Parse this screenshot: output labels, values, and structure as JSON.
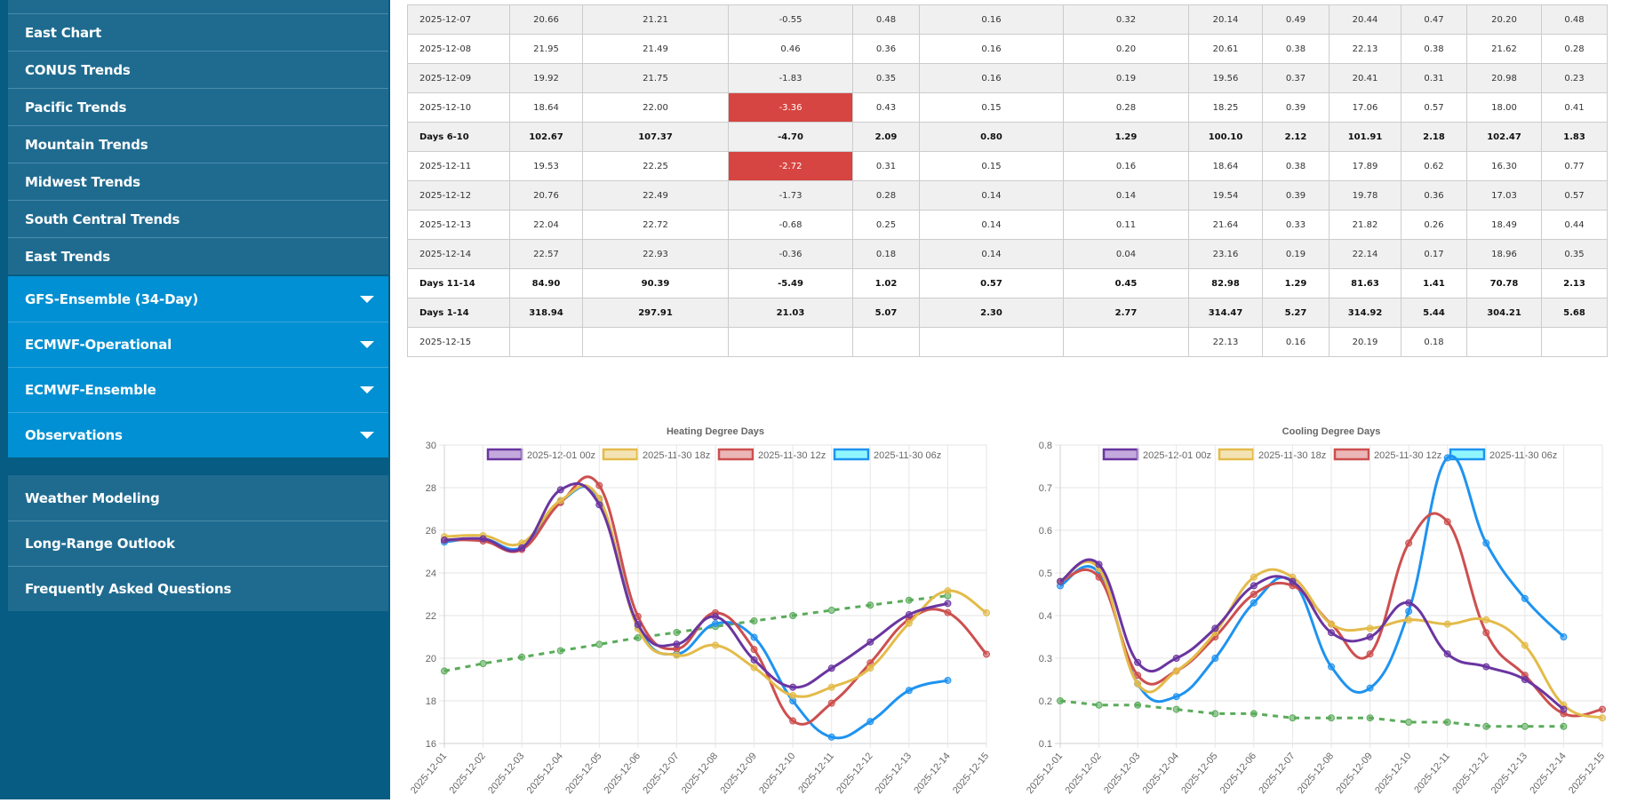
{
  "sidebar": {
    "nav_items": [
      {
        "label": "East Chart"
      },
      {
        "label": "CONUS Trends"
      },
      {
        "label": "Pacific Trends"
      },
      {
        "label": "Mountain Trends"
      },
      {
        "label": "Midwest Trends"
      },
      {
        "label": "South Central Trends"
      },
      {
        "label": "East Trends"
      }
    ],
    "dropdowns": [
      {
        "label": "GFS-Ensemble (34-Day)"
      },
      {
        "label": "ECMWF-Operational"
      },
      {
        "label": "ECMWF-Ensemble"
      },
      {
        "label": "Observations"
      }
    ],
    "bottom_items": [
      {
        "label": "Weather Modeling"
      },
      {
        "label": "Long-Range Outlook"
      },
      {
        "label": "Frequently Asked Questions"
      }
    ]
  },
  "table": {
    "rows": [
      {
        "type": "day",
        "cells": [
          "2025-12-07",
          "20.66",
          "21.21",
          "-0.55",
          "0.48",
          "0.16",
          "0.32",
          "20.14",
          "0.49",
          "20.44",
          "0.47",
          "20.20",
          "0.48"
        ],
        "highlight": ""
      },
      {
        "type": "day",
        "cells": [
          "2025-12-08",
          "21.95",
          "21.49",
          "0.46",
          "0.36",
          "0.16",
          "0.20",
          "20.61",
          "0.38",
          "22.13",
          "0.38",
          "21.62",
          "0.28"
        ],
        "highlight": ""
      },
      {
        "type": "day",
        "cells": [
          "2025-12-09",
          "19.92",
          "21.75",
          "-1.83",
          "0.35",
          "0.16",
          "0.19",
          "19.56",
          "0.37",
          "20.41",
          "0.31",
          "20.98",
          "0.23"
        ],
        "highlight": ""
      },
      {
        "type": "day",
        "cells": [
          "2025-12-10",
          "18.64",
          "22.00",
          "-3.36",
          "0.43",
          "0.15",
          "0.28",
          "18.25",
          "0.39",
          "17.06",
          "0.57",
          "18.00",
          "0.41"
        ],
        "highlight": "neg"
      },
      {
        "type": "sum",
        "cells": [
          "Days 6-10",
          "102.67",
          "107.37",
          "-4.70",
          "2.09",
          "0.80",
          "1.29",
          "100.10",
          "2.12",
          "101.91",
          "2.18",
          "102.47",
          "1.83"
        ],
        "highlight": ""
      },
      {
        "type": "day",
        "cells": [
          "2025-12-11",
          "19.53",
          "22.25",
          "-2.72",
          "0.31",
          "0.15",
          "0.16",
          "18.64",
          "0.38",
          "17.89",
          "0.62",
          "16.30",
          "0.77"
        ],
        "highlight": "neg"
      },
      {
        "type": "day",
        "cells": [
          "2025-12-12",
          "20.76",
          "22.49",
          "-1.73",
          "0.28",
          "0.14",
          "0.14",
          "19.54",
          "0.39",
          "19.78",
          "0.36",
          "17.03",
          "0.57"
        ],
        "highlight": ""
      },
      {
        "type": "day",
        "cells": [
          "2025-12-13",
          "22.04",
          "22.72",
          "-0.68",
          "0.25",
          "0.14",
          "0.11",
          "21.64",
          "0.33",
          "21.82",
          "0.26",
          "18.49",
          "0.44"
        ],
        "highlight": ""
      },
      {
        "type": "day",
        "cells": [
          "2025-12-14",
          "22.57",
          "22.93",
          "-0.36",
          "0.18",
          "0.14",
          "0.04",
          "23.16",
          "0.19",
          "22.14",
          "0.17",
          "18.96",
          "0.35"
        ],
        "highlight": ""
      },
      {
        "type": "sum",
        "cells": [
          "Days 11-14",
          "84.90",
          "90.39",
          "-5.49",
          "1.02",
          "0.57",
          "0.45",
          "82.98",
          "1.29",
          "81.63",
          "1.41",
          "70.78",
          "2.13"
        ],
        "highlight": ""
      },
      {
        "type": "sum",
        "cells": [
          "Days 1-14",
          "318.94",
          "297.91",
          "21.03",
          "5.07",
          "2.30",
          "2.77",
          "314.47",
          "5.27",
          "314.92",
          "5.44",
          "304.21",
          "5.68"
        ],
        "highlight": "pos"
      },
      {
        "type": "day",
        "cells": [
          "2025-12-15",
          "",
          "",
          "",
          "",
          "",
          "",
          "22.13",
          "0.16",
          "20.19",
          "0.18",
          "",
          ""
        ],
        "highlight": ""
      }
    ]
  },
  "colors": {
    "purple": "#6a35a0",
    "yellow": "#e3bb4a",
    "red": "#cd4f4f",
    "blue": "#1e93f0",
    "green": "#5aab5a",
    "neg_cell": "#d64541",
    "pos_cell": "#4169b0"
  },
  "chart_data": [
    {
      "type": "line",
      "title": "Heating Degree Days",
      "xlabel": "",
      "ylabel": "",
      "ylim": [
        16,
        30
      ],
      "yticks": [
        "30",
        "28",
        "26",
        "24",
        "22",
        "20",
        "18",
        "16"
      ],
      "grid": true,
      "legend_position": "top",
      "categories": [
        "2025-12-01",
        "2025-12-02",
        "2025-12-03",
        "2025-12-04",
        "2025-12-05",
        "2025-12-06",
        "2025-12-07",
        "2025-12-08",
        "2025-12-09",
        "2025-12-10",
        "2025-12-11",
        "2025-12-12",
        "2025-12-13",
        "2025-12-14",
        "2025-12-15"
      ],
      "series": [
        {
          "name": "2025-12-01 00z",
          "color": "#6a35a0",
          "fill": "#c3a9dc",
          "values": [
            25.54,
            25.6,
            25.17,
            27.9,
            27.2,
            21.58,
            20.66,
            21.95,
            19.92,
            18.64,
            19.53,
            20.76,
            22.04,
            22.57,
            null
          ]
        },
        {
          "name": "2025-11-30 18z",
          "color": "#e3bb4a",
          "fill": "#f3e3b4",
          "values": [
            25.7,
            25.75,
            25.4,
            27.4,
            27.5,
            21.4,
            20.14,
            20.61,
            19.56,
            18.25,
            18.64,
            19.54,
            21.64,
            23.16,
            22.13
          ]
        },
        {
          "name": "2025-11-30 12z",
          "color": "#cd4f4f",
          "fill": "#ebb6b6",
          "values": [
            25.55,
            25.5,
            25.1,
            27.3,
            28.1,
            21.96,
            20.44,
            22.13,
            20.41,
            17.06,
            17.89,
            19.78,
            21.82,
            22.14,
            20.19
          ]
        },
        {
          "name": "2025-11-30 06z",
          "color": "#1e93f0",
          "fill": "#8ff6ff",
          "values": [
            25.45,
            25.6,
            25.2,
            27.35,
            27.45,
            21.5,
            20.2,
            21.62,
            20.98,
            18.0,
            16.3,
            17.03,
            18.49,
            18.96,
            null
          ]
        },
        {
          "name": "Normal",
          "color": "#5aab5a",
          "dashed": true,
          "hidden_legend": true,
          "values": [
            19.4,
            19.75,
            20.05,
            20.35,
            20.65,
            20.96,
            21.21,
            21.49,
            21.75,
            22.0,
            22.25,
            22.49,
            22.72,
            22.93,
            null
          ]
        }
      ]
    },
    {
      "type": "line",
      "title": "Cooling Degree Days",
      "xlabel": "",
      "ylabel": "",
      "ylim": [
        0.1,
        0.8
      ],
      "yticks": [
        "0.8",
        "0.7",
        "0.6",
        "0.5",
        "0.4",
        "0.3",
        "0.2",
        "0.1"
      ],
      "grid": true,
      "legend_position": "top",
      "categories": [
        "2025-12-01",
        "2025-12-02",
        "2025-12-03",
        "2025-12-04",
        "2025-12-05",
        "2025-12-06",
        "2025-12-07",
        "2025-12-08",
        "2025-12-09",
        "2025-12-10",
        "2025-12-11",
        "2025-12-12",
        "2025-12-13",
        "2025-12-14",
        "2025-12-15"
      ],
      "series": [
        {
          "name": "2025-12-01 00z",
          "color": "#6a35a0",
          "fill": "#c3a9dc",
          "values": [
            0.48,
            0.52,
            0.29,
            0.3,
            0.37,
            0.47,
            0.48,
            0.36,
            0.35,
            0.43,
            0.31,
            0.28,
            0.25,
            0.18,
            null
          ]
        },
        {
          "name": "2025-11-30 18z",
          "color": "#e3bb4a",
          "fill": "#f3e3b4",
          "values": [
            0.48,
            0.51,
            0.24,
            0.27,
            0.36,
            0.49,
            0.49,
            0.38,
            0.37,
            0.39,
            0.38,
            0.39,
            0.33,
            0.19,
            0.16
          ]
        },
        {
          "name": "2025-11-30 12z",
          "color": "#cd4f4f",
          "fill": "#ebb6b6",
          "values": [
            0.48,
            0.49,
            0.26,
            0.27,
            0.35,
            0.45,
            0.47,
            0.38,
            0.31,
            0.57,
            0.62,
            0.36,
            0.26,
            0.17,
            0.18
          ]
        },
        {
          "name": "2025-11-30 06z",
          "color": "#1e93f0",
          "fill": "#8ff6ff",
          "values": [
            0.47,
            0.5,
            0.24,
            0.21,
            0.3,
            0.43,
            0.48,
            0.28,
            0.23,
            0.41,
            0.77,
            0.57,
            0.44,
            0.35,
            null
          ]
        },
        {
          "name": "Normal",
          "color": "#5aab5a",
          "dashed": true,
          "hidden_legend": true,
          "values": [
            0.2,
            0.19,
            0.19,
            0.18,
            0.17,
            0.17,
            0.16,
            0.16,
            0.16,
            0.15,
            0.15,
            0.14,
            0.14,
            0.14,
            null
          ]
        }
      ]
    }
  ]
}
